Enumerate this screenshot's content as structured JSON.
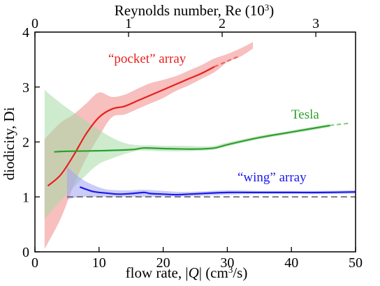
{
  "chart_data": {
    "type": "line",
    "xlabel_prefix": "flow rate, |",
    "xlabel_var": "Q",
    "xlabel_suffix": "| (cm",
    "xlabel_sup": "3",
    "xlabel_tail": "/s)",
    "ylabel": "diodicity, Di",
    "top_xlabel_main": "Reynolds number, Re (10",
    "top_xlabel_sup": "3",
    "top_xlabel_tail": ")",
    "xlim": [
      0,
      50
    ],
    "ylim": [
      0,
      4
    ],
    "x_ticks": [
      0,
      10,
      20,
      30,
      40,
      50
    ],
    "y_ticks": [
      0,
      1,
      2,
      3,
      4
    ],
    "top_ticks": [
      0,
      1,
      2,
      3
    ],
    "top_scale_q_per_re": 14.6,
    "reference_line": {
      "y": 1,
      "style": "dashed",
      "color": "#555555"
    },
    "series": [
      {
        "name": "“pocket” array",
        "color": "#e8201c",
        "band_color": "#f08a88",
        "x": [
          2,
          4,
          6,
          8,
          10,
          12,
          14,
          16,
          18,
          20,
          22,
          24,
          26,
          28
        ],
        "y": [
          1.2,
          1.4,
          1.75,
          2.15,
          2.45,
          2.6,
          2.65,
          2.75,
          2.85,
          2.95,
          3.05,
          3.15,
          3.25,
          3.37
        ],
        "band_x": [
          1.5,
          4,
          6,
          8,
          10,
          12,
          14,
          16,
          18,
          20,
          22,
          24,
          26,
          28,
          30,
          32,
          34
        ],
        "band_lo": [
          0.05,
          0.6,
          1.2,
          1.7,
          2.1,
          2.45,
          2.5,
          2.6,
          2.7,
          2.8,
          2.93,
          3.03,
          3.15,
          3.27,
          3.45,
          3.55,
          3.7
        ],
        "band_hi": [
          2.05,
          2.35,
          2.5,
          2.7,
          2.9,
          2.82,
          2.86,
          2.97,
          3.07,
          3.13,
          3.2,
          3.3,
          3.4,
          3.52,
          3.6,
          3.7,
          3.82
        ],
        "ext_x": [
          28,
          30,
          32
        ],
        "ext_y": [
          3.37,
          3.47,
          3.57
        ]
      },
      {
        "name": "Tesla",
        "color": "#2ca02c",
        "band_color": "#a6dba6",
        "x": [
          3,
          5,
          10,
          15,
          17,
          20,
          25,
          28,
          30,
          35,
          40,
          46
        ],
        "y": [
          1.82,
          1.83,
          1.84,
          1.86,
          1.89,
          1.88,
          1.87,
          1.89,
          1.95,
          2.08,
          2.18,
          2.3
        ],
        "band_x": [
          1.5,
          3,
          5,
          8,
          10,
          12,
          14,
          16,
          18,
          20,
          23,
          26,
          28,
          30,
          35,
          40,
          46
        ],
        "band_lo": [
          0.6,
          0.8,
          1.05,
          1.4,
          1.6,
          1.7,
          1.78,
          1.84,
          1.84,
          1.83,
          1.83,
          1.84,
          1.86,
          1.92,
          2.05,
          2.15,
          2.27
        ],
        "band_hi": [
          2.95,
          2.8,
          2.62,
          2.38,
          2.22,
          2.08,
          1.98,
          1.94,
          1.94,
          1.93,
          1.93,
          1.92,
          1.93,
          1.99,
          2.11,
          2.21,
          2.33
        ],
        "ext_x": [
          46,
          49
        ],
        "ext_y": [
          2.3,
          2.34
        ]
      },
      {
        "name": "“wing” array",
        "color": "#1a1aee",
        "band_color": "#a3a3f3",
        "x": [
          7,
          9,
          11,
          13,
          15,
          17,
          18,
          20,
          22,
          24,
          26,
          30,
          35,
          40,
          45,
          50
        ],
        "y": [
          1.18,
          1.1,
          1.07,
          1.05,
          1.06,
          1.08,
          1.06,
          1.05,
          1.04,
          1.05,
          1.06,
          1.08,
          1.08,
          1.08,
          1.08,
          1.09
        ],
        "band_x": [
          5,
          7,
          9,
          11,
          13,
          15,
          17,
          20,
          23,
          26,
          30,
          35,
          40,
          45,
          50
        ],
        "band_lo": [
          0.95,
          1.0,
          1.0,
          1.0,
          1.0,
          1.0,
          1.0,
          1.01,
          1.01,
          1.02,
          1.04,
          1.05,
          1.05,
          1.05,
          1.06
        ],
        "band_hi": [
          1.55,
          1.35,
          1.22,
          1.14,
          1.12,
          1.12,
          1.13,
          1.11,
          1.09,
          1.1,
          1.12,
          1.11,
          1.11,
          1.11,
          1.12
        ]
      }
    ]
  }
}
